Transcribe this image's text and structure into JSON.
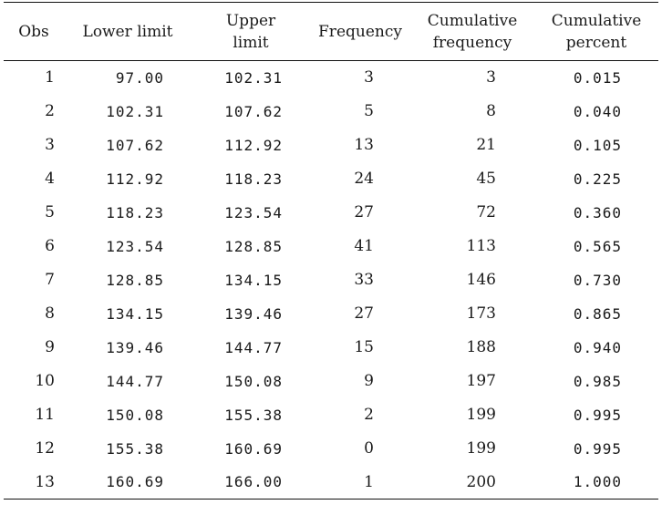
{
  "table": {
    "headers": [
      [
        "Obs"
      ],
      [
        "Lower limit"
      ],
      [
        "Upper",
        "limit"
      ],
      [
        "Frequency"
      ],
      [
        "Cumulative",
        "frequency"
      ],
      [
        "Cumulative",
        "percent"
      ]
    ],
    "rows": [
      [
        "1",
        "97.00",
        "102.31",
        "3",
        "3",
        "0.015"
      ],
      [
        "2",
        "102.31",
        "107.62",
        "5",
        "8",
        "0.040"
      ],
      [
        "3",
        "107.62",
        "112.92",
        "13",
        "21",
        "0.105"
      ],
      [
        "4",
        "112.92",
        "118.23",
        "24",
        "45",
        "0.225"
      ],
      [
        "5",
        "118.23",
        "123.54",
        "27",
        "72",
        "0.360"
      ],
      [
        "6",
        "123.54",
        "128.85",
        "41",
        "113",
        "0.565"
      ],
      [
        "7",
        "128.85",
        "134.15",
        "33",
        "146",
        "0.730"
      ],
      [
        "8",
        "134.15",
        "139.46",
        "27",
        "173",
        "0.865"
      ],
      [
        "9",
        "139.46",
        "144.77",
        "15",
        "188",
        "0.940"
      ],
      [
        "10",
        "144.77",
        "150.08",
        "9",
        "197",
        "0.985"
      ],
      [
        "11",
        "150.08",
        "155.38",
        "2",
        "199",
        "0.995"
      ],
      [
        "12",
        "155.38",
        "160.69",
        "0",
        "199",
        "0.995"
      ],
      [
        "13",
        "160.69",
        "166.00",
        "1",
        "200",
        "1.000"
      ]
    ]
  }
}
